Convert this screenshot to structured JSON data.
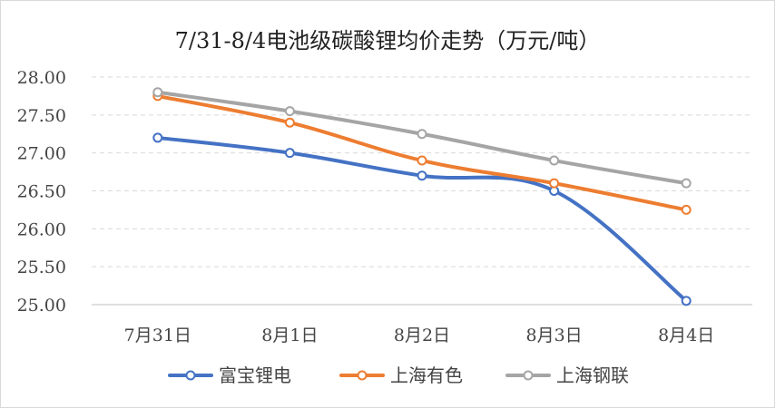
{
  "chart_data": {
    "type": "line",
    "title": "7/31-8/4电池级碳酸锂均价走势（万元/吨）",
    "categories": [
      "7月31日",
      "8月1日",
      "8月2日",
      "8月3日",
      "8月4日"
    ],
    "ylim": [
      25.0,
      28.0
    ],
    "yticks": [
      "25.00",
      "25.50",
      "26.00",
      "26.50",
      "27.00",
      "27.50",
      "28.00"
    ],
    "grid": true,
    "legend_position": "bottom",
    "series": [
      {
        "name": "富宝锂电",
        "color": "#4472c4",
        "values": [
          27.2,
          27.0,
          26.7,
          26.5,
          25.05
        ]
      },
      {
        "name": "上海有色",
        "color": "#ed7d31",
        "values": [
          27.75,
          27.4,
          26.9,
          26.6,
          26.25
        ]
      },
      {
        "name": "上海钢联",
        "color": "#a5a5a5",
        "values": [
          27.8,
          27.55,
          27.25,
          26.9,
          26.6
        ]
      }
    ]
  }
}
